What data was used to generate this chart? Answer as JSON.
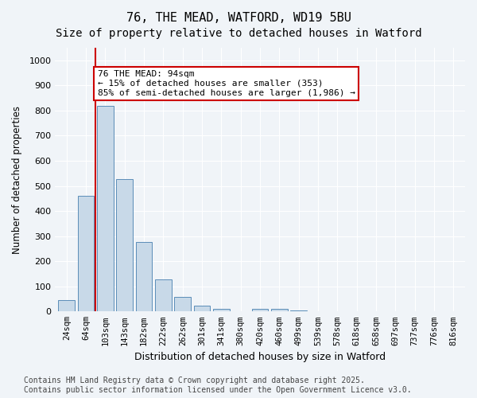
{
  "title": "76, THE MEAD, WATFORD, WD19 5BU",
  "subtitle": "Size of property relative to detached houses in Watford",
  "xlabel": "Distribution of detached houses by size in Watford",
  "ylabel": "Number of detached properties",
  "categories": [
    "24sqm",
    "64sqm",
    "103sqm",
    "143sqm",
    "182sqm",
    "222sqm",
    "262sqm",
    "301sqm",
    "341sqm",
    "380sqm",
    "420sqm",
    "460sqm",
    "499sqm",
    "539sqm",
    "578sqm",
    "618sqm",
    "658sqm",
    "697sqm",
    "737sqm",
    "776sqm",
    "816sqm"
  ],
  "values": [
    45,
    462,
    820,
    527,
    278,
    128,
    58,
    23,
    12,
    0,
    12,
    10,
    3,
    0,
    0,
    0,
    0,
    0,
    0,
    0,
    0
  ],
  "bar_color": "#c8d9e8",
  "bar_edge_color": "#5b8db8",
  "vline_x_index": 1.5,
  "vline_color": "#cc0000",
  "annotation_text": "76 THE MEAD: 94sqm\n← 15% of detached houses are smaller (353)\n85% of semi-detached houses are larger (1,986) →",
  "annotation_box_color": "#cc0000",
  "annotation_fontsize": 8,
  "ylim": [
    0,
    1050
  ],
  "yticks": [
    0,
    100,
    200,
    300,
    400,
    500,
    600,
    700,
    800,
    900,
    1000
  ],
  "background_color": "#f0f4f8",
  "grid_color": "#ffffff",
  "footer": "Contains HM Land Registry data © Crown copyright and database right 2025.\nContains public sector information licensed under the Open Government Licence v3.0.",
  "title_fontsize": 11,
  "subtitle_fontsize": 10,
  "footer_fontsize": 7
}
